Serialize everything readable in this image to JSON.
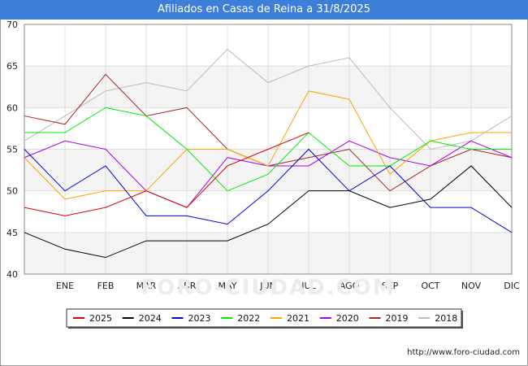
{
  "header": {
    "title": "Afiliados en Casas de Reina a 31/8/2025",
    "bar_color": "#3d7fd8"
  },
  "footer": {
    "url": "http://www.foro-ciudad.com"
  },
  "watermark": "FORO-CIUDAD.COM",
  "chart_data": {
    "type": "line",
    "title": "Afiliados en Casas de Reina a 31/8/2025",
    "xlabel": "",
    "ylabel": "",
    "categories": [
      "",
      "ENE",
      "FEB",
      "MAR",
      "ABR",
      "MAY",
      "JUN",
      "JUL",
      "AGO",
      "SEP",
      "OCT",
      "NOV",
      "DIC"
    ],
    "ylim": [
      40,
      70
    ],
    "yticks": [
      40,
      45,
      50,
      55,
      60,
      65,
      70
    ],
    "grid": true,
    "legend_position": "bottom",
    "series": [
      {
        "name": "2025",
        "color": "#dd0000",
        "values": [
          48,
          47,
          48,
          50,
          48,
          53,
          55,
          57,
          null,
          null,
          null,
          null,
          null
        ]
      },
      {
        "name": "2024",
        "color": "#000000",
        "values": [
          45,
          43,
          42,
          44,
          44,
          44,
          46,
          50,
          50,
          48,
          49,
          53,
          48
        ]
      },
      {
        "name": "2023",
        "color": "#0000dd",
        "values": [
          55,
          50,
          53,
          47,
          47,
          46,
          50,
          55,
          50,
          53,
          48,
          48,
          45
        ]
      },
      {
        "name": "2022",
        "color": "#00ee00",
        "values": [
          57,
          57,
          60,
          59,
          55,
          50,
          52,
          57,
          53,
          53,
          56,
          55,
          55
        ]
      },
      {
        "name": "2021",
        "color": "#ffa500",
        "values": [
          54,
          49,
          50,
          50,
          55,
          55,
          53,
          62,
          61,
          52,
          56,
          57,
          57
        ]
      },
      {
        "name": "2020",
        "color": "#aa00ee",
        "values": [
          54,
          56,
          55,
          50,
          48,
          54,
          53,
          53,
          56,
          54,
          53,
          56,
          54
        ]
      },
      {
        "name": "2019",
        "color": "#aa2222",
        "values": [
          59,
          58,
          64,
          59,
          60,
          55,
          53,
          54,
          55,
          50,
          53,
          55,
          54
        ]
      },
      {
        "name": "2018",
        "color": "#bbbbbb",
        "values": [
          56,
          59,
          62,
          63,
          62,
          67,
          63,
          65,
          66,
          60,
          55,
          56,
          59
        ]
      }
    ]
  }
}
